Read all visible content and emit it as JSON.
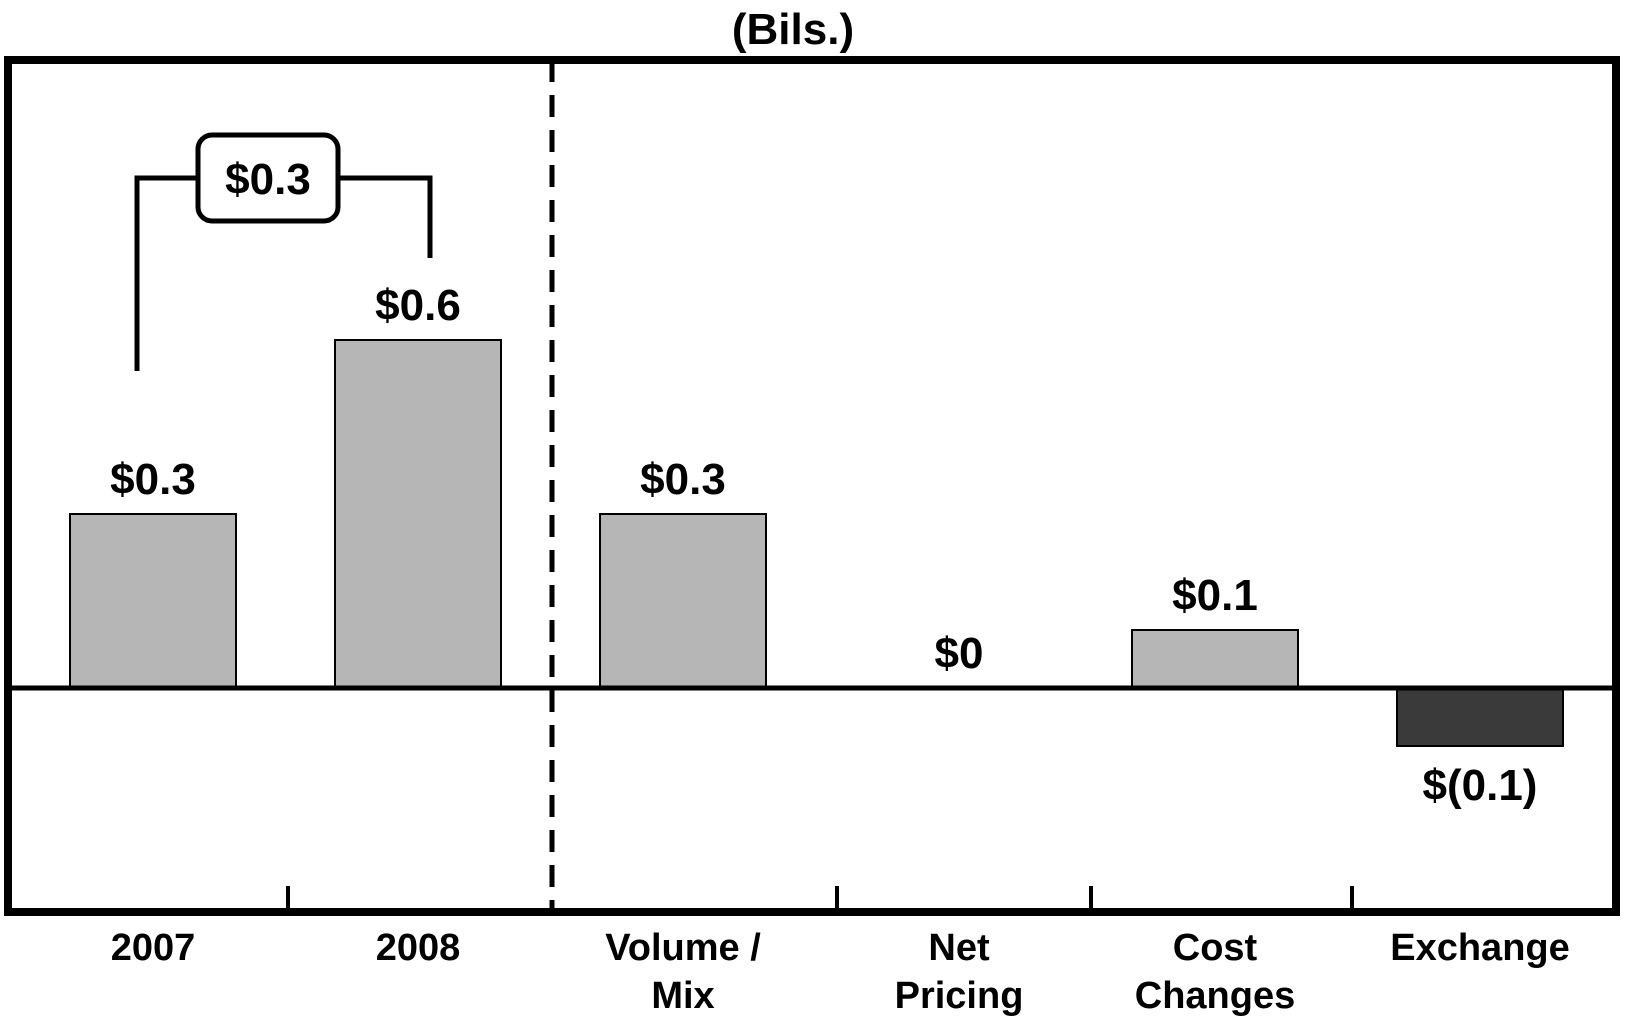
{
  "header": {
    "unit_label": "(Bils.)"
  },
  "chart_data": {
    "type": "bar",
    "title": "",
    "subtitle": "(Bils.)",
    "xlabel": "",
    "ylabel": "",
    "ylim": [
      -0.3,
      0.9
    ],
    "grid": false,
    "legend": "none",
    "categories": [
      {
        "lines": [
          "2007"
        ]
      },
      {
        "lines": [
          "2008"
        ]
      },
      {
        "lines": [
          "Volume /",
          "Mix"
        ]
      },
      {
        "lines": [
          "Net",
          "Pricing"
        ]
      },
      {
        "lines": [
          "Cost",
          "Changes"
        ]
      },
      {
        "lines": [
          "Exchange"
        ]
      }
    ],
    "values": [
      0.3,
      0.6,
      0.3,
      0,
      0.1,
      -0.1
    ],
    "data_labels": [
      "$0.3",
      "$0.6",
      "$0.3",
      "$0",
      "$0.1",
      "$(0.1)"
    ],
    "annotation": {
      "text": "$0.3",
      "from_category": 0,
      "to_category": 1
    },
    "colors": {
      "positive": "#b6b6b6",
      "negative": "#3a3a3a",
      "outline": "#000000"
    }
  }
}
